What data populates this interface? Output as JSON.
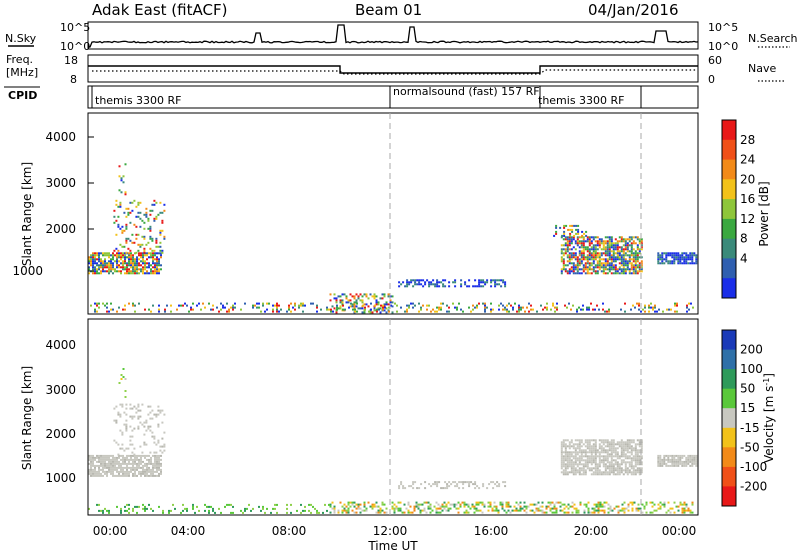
{
  "header": {
    "radar": "Adak East (fitACF)",
    "beam": "Beam 01",
    "date": "04/Jan/2016"
  },
  "panels": {
    "nsky": {
      "left_label": "N.Sky",
      "right_label": "N.Search",
      "left_ticks": [
        "10^5",
        "10^0"
      ],
      "right_ticks": [
        "10^5",
        "10^0"
      ]
    },
    "freq": {
      "left_label_line1": "Freq.",
      "left_label_line2": "[MHz]",
      "right_label": "Nave",
      "left_ticks": [
        "18",
        "8"
      ],
      "right_ticks": [
        "60",
        "0"
      ]
    },
    "cpid": {
      "label": "CPID",
      "programs": [
        {
          "name": "themis 3300 RF",
          "start": 0.0
        },
        {
          "name": "normalsound (fast) 157 RF",
          "start": 12.0
        },
        {
          "name": "themis 3300 RF",
          "start": 18.0
        }
      ]
    }
  },
  "chart_data": [
    {
      "type": "heatmap",
      "title": "",
      "ylabel": "Slant Range [km]",
      "xlabel": "",
      "ylim": [
        200,
        4600
      ],
      "yticks": [
        "1000",
        "2000",
        "3000",
        "4000"
      ],
      "colorbar": {
        "label": "Power [dB]",
        "ticks": [
          "4",
          "8",
          "12",
          "16",
          "20",
          "24",
          "28"
        ],
        "colors": [
          "#1a2ee8",
          "#2f5fb0",
          "#3a8a7a",
          "#3aa840",
          "#8ec63a",
          "#f2c21a",
          "#f28a18",
          "#f05018",
          "#e81818"
        ]
      },
      "scatter_regions": [
        {
          "t0": 0.0,
          "t1": 2.9,
          "r0": 1100,
          "r1": 1550,
          "density": 0.75,
          "palette": "power"
        },
        {
          "t0": 1.0,
          "t1": 3.0,
          "r0": 1550,
          "r1": 2700,
          "density": 0.18,
          "palette": "power"
        },
        {
          "t0": 1.2,
          "t1": 1.5,
          "r0": 2800,
          "r1": 3500,
          "density": 0.2,
          "palette": "power"
        },
        {
          "t0": 12.2,
          "t1": 16.4,
          "r0": 820,
          "r1": 960,
          "density": 0.45,
          "palette": "blue"
        },
        {
          "t0": 18.6,
          "t1": 21.8,
          "r0": 1100,
          "r1": 1900,
          "density": 0.7,
          "palette": "power"
        },
        {
          "t0": 18.3,
          "t1": 19.6,
          "r0": 1900,
          "r1": 2150,
          "density": 0.3,
          "palette": "power"
        },
        {
          "t0": 22.4,
          "t1": 23.9,
          "r0": 1300,
          "r1": 1550,
          "density": 0.8,
          "palette": "blue"
        },
        {
          "t0": 9.5,
          "t1": 12.0,
          "r0": 250,
          "r1": 650,
          "density": 0.35,
          "palette": "power"
        },
        {
          "t0": 0.0,
          "t1": 24.0,
          "r0": 250,
          "r1": 450,
          "density": 0.22,
          "palette": "power"
        }
      ]
    },
    {
      "type": "heatmap",
      "title": "",
      "ylabel": "Slant Range [km]",
      "xlabel": "Time UT",
      "ylim": [
        200,
        4600
      ],
      "yticks": [
        "1000",
        "2000",
        "3000",
        "4000"
      ],
      "xticks": [
        "00:00",
        "04:00",
        "08:00",
        "12:00",
        "16:00",
        "20:00",
        "00:00"
      ],
      "colorbar": {
        "label": "Velocity [m s-1]",
        "ticks": [
          "200",
          "100",
          "50",
          "15",
          "-15",
          "-50",
          "-100",
          "-200"
        ],
        "colors": [
          "#1a3ab8",
          "#2f70a8",
          "#2e9a5a",
          "#5ac83a",
          "#c8c8c0",
          "#f2c21a",
          "#f28a18",
          "#f05018",
          "#e81818"
        ]
      },
      "scatter_regions": [
        {
          "t0": 0.0,
          "t1": 2.9,
          "r0": 1100,
          "r1": 1550,
          "density": 0.8,
          "palette": "ground"
        },
        {
          "t0": 1.0,
          "t1": 3.0,
          "r0": 1550,
          "r1": 2700,
          "density": 0.18,
          "palette": "ground"
        },
        {
          "t0": 1.2,
          "t1": 1.5,
          "r0": 2800,
          "r1": 3500,
          "density": 0.18,
          "palette": "mixed"
        },
        {
          "t0": 12.2,
          "t1": 16.4,
          "r0": 820,
          "r1": 960,
          "density": 0.35,
          "palette": "ground"
        },
        {
          "t0": 18.6,
          "t1": 21.8,
          "r0": 1100,
          "r1": 1900,
          "density": 0.75,
          "palette": "ground"
        },
        {
          "t0": 22.4,
          "t1": 23.9,
          "r0": 1300,
          "r1": 1550,
          "density": 0.85,
          "palette": "ground"
        },
        {
          "t0": 9.5,
          "t1": 23.8,
          "r0": 250,
          "r1": 500,
          "density": 0.4,
          "palette": "mixed"
        },
        {
          "t0": 0.0,
          "t1": 9.5,
          "r0": 250,
          "r1": 450,
          "density": 0.2,
          "palette": "green"
        }
      ]
    }
  ]
}
